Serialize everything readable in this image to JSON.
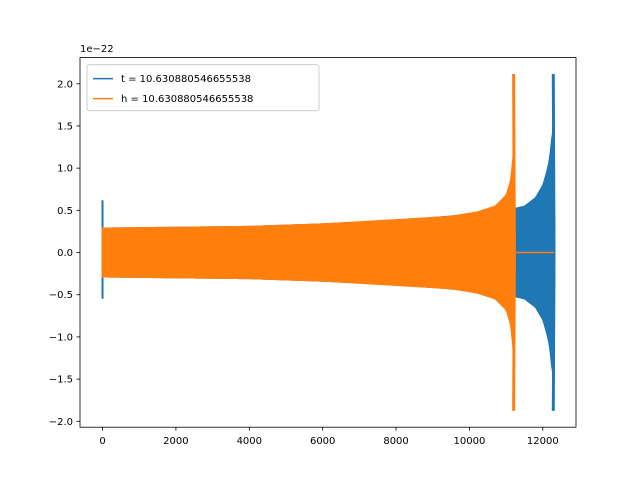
{
  "chart_data": {
    "type": "line",
    "x_offset_label": "",
    "y_offset_label": "1e−22",
    "xlim": [
      -614,
      12904
    ],
    "ylim": [
      -2.07,
      2.31
    ],
    "x_ticks": [
      0,
      2000,
      4000,
      6000,
      8000,
      10000,
      12000
    ],
    "x_tick_labels": [
      "0",
      "2000",
      "4000",
      "6000",
      "8000",
      "10000",
      "12000"
    ],
    "y_ticks": [
      -2.0,
      -1.5,
      -1.0,
      -0.5,
      0.0,
      0.5,
      1.0,
      1.5,
      2.0
    ],
    "y_tick_labels": [
      "−2.0",
      "−1.5",
      "−1.0",
      "−0.5",
      "0.0",
      "0.5",
      "1.0",
      "1.5",
      "2.0"
    ],
    "legend_position": "upper-left",
    "grid": false,
    "series": [
      {
        "name": "t = 10.630880546655538",
        "color": "#1f77b4",
        "spike_start": {
          "x": 0,
          "ymax": 0.62,
          "ymin": -0.55
        },
        "envelope": [
          {
            "x": 0,
            "amp": 0.29
          },
          {
            "x": 2000,
            "amp": 0.3
          },
          {
            "x": 4000,
            "amp": 0.31
          },
          {
            "x": 6000,
            "amp": 0.34
          },
          {
            "x": 8000,
            "amp": 0.38
          },
          {
            "x": 10000,
            "amp": 0.45
          },
          {
            "x": 11000,
            "amp": 0.5
          },
          {
            "x": 11500,
            "amp": 0.55
          },
          {
            "x": 11800,
            "amp": 0.65
          },
          {
            "x": 12000,
            "amp": 0.8
          },
          {
            "x": 12100,
            "amp": 0.95
          },
          {
            "x": 12180,
            "amp": 1.1
          },
          {
            "x": 12240,
            "amp": 1.35
          },
          {
            "x": 12280,
            "amp": 1.47
          }
        ],
        "spike_end": {
          "x": 12290,
          "ymax": 2.11,
          "ymin": -1.87
        }
      },
      {
        "name": "h = 10.630880546655538",
        "color": "#ff7f0e",
        "spike_start": {
          "x": 0,
          "ymax": 0.3,
          "ymin": -0.3
        },
        "envelope": [
          {
            "x": 0,
            "amp": 0.29
          },
          {
            "x": 2000,
            "amp": 0.3
          },
          {
            "x": 4000,
            "amp": 0.31
          },
          {
            "x": 6000,
            "amp": 0.34
          },
          {
            "x": 8000,
            "amp": 0.39
          },
          {
            "x": 9500,
            "amp": 0.43
          },
          {
            "x": 10200,
            "amp": 0.48
          },
          {
            "x": 10700,
            "amp": 0.55
          },
          {
            "x": 11000,
            "amp": 0.68
          },
          {
            "x": 11120,
            "amp": 0.85
          },
          {
            "x": 11200,
            "amp": 1.2
          }
        ],
        "spike_end": {
          "x": 11210,
          "ymax": 2.11,
          "ymin": -1.87
        },
        "flat_tail": {
          "x_start": 11220,
          "x_end": 12300,
          "y": 0.0
        }
      }
    ]
  }
}
